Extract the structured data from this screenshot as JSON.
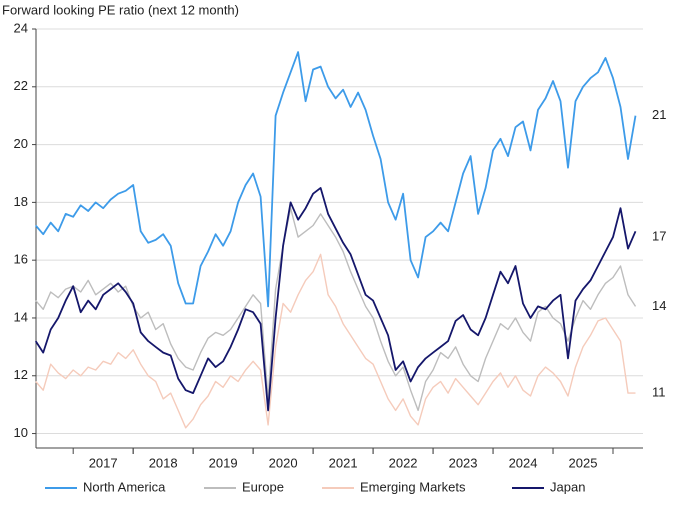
{
  "chart_data": {
    "type": "line",
    "title": "Forward looking PE ratio (next 12 month)",
    "x": [
      2016.375,
      2016.5,
      2016.625,
      2016.75,
      2016.875,
      2017,
      2017.125,
      2017.25,
      2017.375,
      2017.5,
      2017.625,
      2017.75,
      2017.875,
      2018,
      2018.125,
      2018.25,
      2018.375,
      2018.5,
      2018.625,
      2018.75,
      2018.875,
      2019,
      2019.125,
      2019.25,
      2019.375,
      2019.5,
      2019.625,
      2019.75,
      2019.875,
      2020,
      2020.125,
      2020.25,
      2020.375,
      2020.5,
      2020.625,
      2020.75,
      2020.875,
      2021,
      2021.125,
      2021.25,
      2021.375,
      2021.5,
      2021.625,
      2021.75,
      2021.875,
      2022,
      2022.125,
      2022.25,
      2022.375,
      2022.5,
      2022.625,
      2022.75,
      2022.875,
      2023,
      2023.125,
      2023.25,
      2023.375,
      2023.5,
      2023.625,
      2023.75,
      2023.875,
      2024,
      2024.125,
      2024.25,
      2024.375,
      2024.5,
      2024.625,
      2024.75,
      2024.875,
      2025,
      2025.125,
      2025.25,
      2025.375,
      2025.5,
      2025.625,
      2025.75,
      2025.875,
      2026,
      2026.125,
      2026.25,
      2026.375
    ],
    "series": [
      {
        "name": "North America",
        "color": "#3d9be9",
        "values": [
          17.2,
          16.9,
          17.3,
          17.0,
          17.6,
          17.5,
          17.9,
          17.7,
          18.0,
          17.8,
          18.1,
          18.3,
          18.4,
          18.6,
          17.0,
          16.6,
          16.7,
          16.9,
          16.5,
          15.2,
          14.5,
          14.5,
          15.8,
          16.3,
          16.9,
          16.5,
          17.0,
          18.0,
          18.6,
          19.0,
          18.2,
          14.4,
          21.0,
          21.8,
          22.5,
          23.2,
          21.5,
          22.6,
          22.7,
          22.0,
          21.6,
          21.9,
          21.3,
          21.8,
          21.2,
          20.3,
          19.5,
          18.0,
          17.4,
          18.3,
          16.0,
          15.4,
          16.8,
          17.0,
          17.3,
          17.0,
          18.0,
          19.0,
          19.6,
          17.6,
          18.5,
          19.8,
          20.2,
          19.6,
          20.6,
          20.8,
          19.8,
          21.2,
          21.6,
          22.2,
          21.5,
          19.2,
          21.5,
          22.0,
          22.3,
          22.5,
          23.0,
          22.3,
          21.3,
          19.5,
          21.0
        ]
      },
      {
        "name": "Europe",
        "color": "#bdbdbd",
        "values": [
          14.6,
          14.3,
          14.9,
          14.7,
          15.0,
          15.1,
          14.9,
          15.3,
          14.8,
          15.0,
          15.2,
          14.9,
          15.1,
          14.4,
          14.0,
          14.2,
          13.6,
          13.8,
          13.1,
          12.6,
          12.3,
          12.2,
          12.8,
          13.3,
          13.5,
          13.4,
          13.6,
          14.0,
          14.4,
          14.8,
          14.5,
          11.2,
          15.0,
          16.5,
          17.8,
          16.8,
          17.0,
          17.2,
          17.6,
          17.2,
          16.8,
          16.3,
          15.6,
          15.0,
          14.4,
          14.0,
          13.2,
          12.5,
          12.0,
          12.3,
          11.5,
          10.8,
          11.8,
          12.2,
          12.8,
          12.6,
          13.0,
          12.4,
          12.0,
          11.8,
          12.6,
          13.2,
          13.8,
          13.6,
          14.0,
          13.5,
          13.2,
          14.2,
          14.4,
          14.0,
          13.8,
          13.2,
          14.0,
          14.6,
          14.3,
          14.8,
          15.2,
          15.4,
          15.8,
          14.8,
          14.4
        ]
      },
      {
        "name": "Emerging Markets",
        "color": "#f5cbbb",
        "values": [
          11.8,
          11.5,
          12.4,
          12.1,
          11.9,
          12.2,
          12.0,
          12.3,
          12.2,
          12.5,
          12.4,
          12.8,
          12.6,
          12.9,
          12.4,
          12.0,
          11.8,
          11.2,
          11.4,
          10.8,
          10.2,
          10.5,
          11.0,
          11.3,
          11.8,
          11.6,
          12.0,
          11.8,
          12.2,
          12.5,
          12.2,
          10.3,
          13.0,
          14.5,
          14.2,
          14.8,
          15.3,
          15.6,
          16.2,
          14.8,
          14.4,
          13.8,
          13.4,
          13.0,
          12.6,
          12.4,
          11.8,
          11.2,
          10.8,
          11.2,
          10.6,
          10.3,
          11.2,
          11.6,
          11.8,
          11.4,
          11.9,
          11.6,
          11.3,
          11.0,
          11.4,
          11.8,
          12.1,
          11.6,
          12.0,
          11.5,
          11.3,
          12.0,
          12.3,
          12.1,
          11.8,
          11.3,
          12.3,
          13.0,
          13.4,
          13.9,
          14.0,
          13.6,
          13.2,
          11.4,
          11.4
        ]
      },
      {
        "name": "Japan",
        "color": "#15176b",
        "values": [
          13.2,
          12.8,
          13.6,
          14.0,
          14.6,
          15.1,
          14.2,
          14.6,
          14.3,
          14.8,
          15.0,
          15.2,
          14.9,
          14.5,
          13.5,
          13.2,
          13.0,
          12.8,
          12.7,
          11.9,
          11.5,
          11.4,
          12.0,
          12.6,
          12.3,
          12.5,
          13.0,
          13.6,
          14.3,
          14.2,
          13.8,
          10.8,
          14.0,
          16.5,
          18.0,
          17.4,
          17.8,
          18.3,
          18.5,
          17.6,
          17.1,
          16.6,
          16.2,
          15.5,
          14.8,
          14.6,
          14.0,
          13.4,
          12.2,
          12.5,
          11.8,
          12.3,
          12.6,
          12.8,
          13.0,
          13.2,
          13.9,
          14.1,
          13.6,
          13.4,
          14.0,
          14.8,
          15.6,
          15.2,
          15.8,
          14.5,
          14.0,
          14.4,
          14.3,
          14.6,
          14.8,
          12.6,
          14.6,
          15.0,
          15.3,
          15.8,
          16.3,
          16.8,
          17.8,
          16.4,
          17.0
        ]
      }
    ],
    "annotations": [
      {
        "text": "21",
        "y": 21
      },
      {
        "text": "17",
        "y": 16.8
      },
      {
        "text": "14",
        "y": 14.4
      },
      {
        "text": "11",
        "y": 11.4
      }
    ],
    "xlim": [
      2016.38,
      2026.5
    ],
    "xticks": [
      {
        "value": 2017.5,
        "label": "2017"
      },
      {
        "value": 2018.5,
        "label": "2018"
      },
      {
        "value": 2019.5,
        "label": "2019"
      },
      {
        "value": 2020.5,
        "label": "2020"
      },
      {
        "value": 2021.5,
        "label": "2021"
      },
      {
        "value": 2022.5,
        "label": "2022"
      },
      {
        "value": 2023.5,
        "label": "2023"
      },
      {
        "value": 2024.5,
        "label": "2024"
      },
      {
        "value": 2025.5,
        "label": "2025"
      }
    ],
    "ylim": [
      9.5,
      24
    ],
    "yticks": [
      10,
      12,
      14,
      16,
      18,
      20,
      22,
      24
    ],
    "grid": true
  }
}
